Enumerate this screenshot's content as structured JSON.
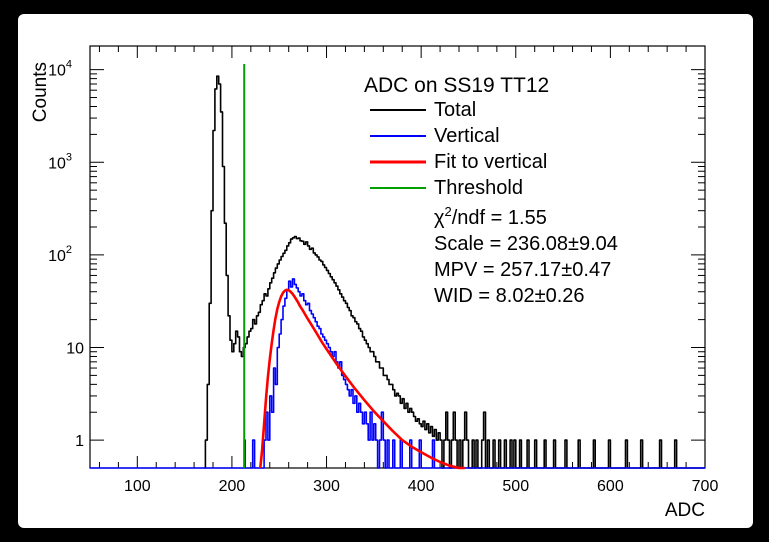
{
  "chart_data": {
    "type": "line",
    "xlabel": "ADC",
    "ylabel": "Counts",
    "xlim": [
      50,
      700
    ],
    "ylim": [
      0.5,
      18000
    ],
    "yscale": "log",
    "x_ticks": [
      100,
      200,
      300,
      400,
      500,
      600,
      700
    ],
    "y_ticks": [
      {
        "value": 1,
        "label": "1"
      },
      {
        "value": 10,
        "label": "10"
      },
      {
        "value": 100,
        "label": "10",
        "sup": "2"
      },
      {
        "value": 1000,
        "label": "10",
        "sup": "3"
      },
      {
        "value": 10000,
        "label": "10",
        "sup": "4"
      }
    ],
    "legend": {
      "title": "ADC on SS19 TT12",
      "placement": "top-right",
      "entries": [
        {
          "label": "Total",
          "color": "#000000"
        },
        {
          "label": "Vertical",
          "color": "#0000ff"
        },
        {
          "label": "Fit to vertical",
          "color": "#ff0000"
        },
        {
          "label": "Threshold",
          "color": "#00a000"
        }
      ],
      "stats": {
        "chi2_symbol": "χ",
        "chi2_sup": "2",
        "chi2_rest": "/ndf = 1.55",
        "scale": "Scale = 236.08±9.04",
        "mpv": "MPV = 257.17±0.47",
        "wid": "WID = 8.02±0.26"
      }
    },
    "threshold_x": 213,
    "series": [
      {
        "name": "Total",
        "color": "#000000",
        "kind": "step",
        "points": [
          [
            171,
            0.5
          ],
          [
            172,
            1
          ],
          [
            174,
            4
          ],
          [
            176,
            30
          ],
          [
            178,
            300
          ],
          [
            180,
            2200
          ],
          [
            182,
            6200
          ],
          [
            184,
            8500
          ],
          [
            186,
            7000
          ],
          [
            188,
            3500
          ],
          [
            190,
            900
          ],
          [
            192,
            220
          ],
          [
            194,
            60
          ],
          [
            196,
            22
          ],
          [
            198,
            12
          ],
          [
            200,
            9
          ],
          [
            202,
            11
          ],
          [
            204,
            15
          ],
          [
            206,
            13
          ],
          [
            208,
            9
          ],
          [
            210,
            8
          ],
          [
            212,
            10
          ],
          [
            214,
            11
          ],
          [
            216,
            13
          ],
          [
            218,
            15
          ],
          [
            220,
            16
          ],
          [
            222,
            20
          ],
          [
            224,
            18
          ],
          [
            226,
            22
          ],
          [
            228,
            24
          ],
          [
            230,
            29
          ],
          [
            232,
            32
          ],
          [
            234,
            38
          ],
          [
            236,
            36
          ],
          [
            238,
            43
          ],
          [
            240,
            50
          ],
          [
            242,
            56
          ],
          [
            244,
            64
          ],
          [
            246,
            72
          ],
          [
            248,
            80
          ],
          [
            250,
            88
          ],
          [
            252,
            96
          ],
          [
            254,
            104
          ],
          [
            256,
            112
          ],
          [
            258,
            125
          ],
          [
            260,
            135
          ],
          [
            262,
            148
          ],
          [
            264,
            153
          ],
          [
            266,
            158
          ],
          [
            268,
            150
          ],
          [
            270,
            152
          ],
          [
            272,
            142
          ],
          [
            274,
            140
          ],
          [
            276,
            130
          ],
          [
            278,
            138
          ],
          [
            280,
            125
          ],
          [
            282,
            115
          ],
          [
            284,
            118
          ],
          [
            286,
            105
          ],
          [
            288,
            100
          ],
          [
            290,
            95
          ],
          [
            292,
            88
          ],
          [
            294,
            85
          ],
          [
            296,
            78
          ],
          [
            298,
            73
          ],
          [
            300,
            68
          ],
          [
            302,
            63
          ],
          [
            304,
            58
          ],
          [
            306,
            54
          ],
          [
            308,
            50
          ],
          [
            310,
            46
          ],
          [
            312,
            42
          ],
          [
            314,
            38
          ],
          [
            316,
            35
          ],
          [
            318,
            32
          ],
          [
            320,
            30
          ],
          [
            322,
            27
          ],
          [
            324,
            25
          ],
          [
            326,
            22
          ],
          [
            328,
            21
          ],
          [
            330,
            19
          ],
          [
            332,
            18
          ],
          [
            334,
            16
          ],
          [
            336,
            15
          ],
          [
            338,
            13
          ],
          [
            340,
            12
          ],
          [
            342,
            11
          ],
          [
            344,
            10
          ],
          [
            346,
            9
          ],
          [
            348,
            9
          ],
          [
            350,
            8
          ],
          [
            352,
            7
          ],
          [
            354,
            7
          ],
          [
            356,
            6
          ],
          [
            358,
            6
          ],
          [
            360,
            5
          ],
          [
            362,
            5
          ],
          [
            364,
            4.5
          ],
          [
            366,
            4
          ],
          [
            368,
            4
          ],
          [
            370,
            3.5
          ],
          [
            372,
            3
          ],
          [
            374,
            3.2
          ],
          [
            376,
            3
          ],
          [
            378,
            2.5
          ],
          [
            380,
            2.8
          ],
          [
            382,
            2.2
          ],
          [
            384,
            2.5
          ],
          [
            386,
            2
          ],
          [
            388,
            2.2
          ],
          [
            390,
            2
          ],
          [
            392,
            1.8
          ],
          [
            394,
            1.6
          ],
          [
            396,
            1.7
          ],
          [
            398,
            1.5
          ],
          [
            400,
            1.4
          ],
          [
            402,
            1.6
          ],
          [
            404,
            1.3
          ],
          [
            406,
            1.5
          ],
          [
            408,
            1.2
          ],
          [
            410,
            1.4
          ],
          [
            412,
            1.1
          ],
          [
            414,
            1.3
          ],
          [
            416,
            1
          ],
          [
            418,
            1.2
          ],
          [
            420,
            1
          ],
          [
            422,
            0.5
          ],
          [
            424,
            1
          ],
          [
            426,
            2
          ],
          [
            428,
            1
          ],
          [
            430,
            0.5
          ],
          [
            432,
            1
          ],
          [
            434,
            2
          ],
          [
            436,
            1
          ],
          [
            438,
            0.5
          ],
          [
            440,
            1
          ],
          [
            442,
            0.5
          ],
          [
            444,
            1
          ],
          [
            446,
            2
          ],
          [
            448,
            1
          ],
          [
            450,
            0.5
          ],
          [
            454,
            1
          ],
          [
            456,
            0.5
          ],
          [
            458,
            1
          ],
          [
            460,
            0.5
          ],
          [
            464,
            1
          ],
          [
            466,
            2
          ],
          [
            468,
            0.5
          ],
          [
            470,
            1
          ],
          [
            472,
            0.5
          ],
          [
            476,
            1
          ],
          [
            478,
            0.5
          ],
          [
            482,
            1
          ],
          [
            484,
            0.5
          ],
          [
            488,
            1
          ],
          [
            490,
            0.5
          ],
          [
            494,
            1
          ],
          [
            496,
            0.5
          ],
          [
            498,
            1
          ],
          [
            500,
            0.5
          ],
          [
            504,
            1
          ],
          [
            506,
            0.5
          ],
          [
            512,
            1
          ],
          [
            514,
            0.5
          ],
          [
            520,
            1
          ],
          [
            522,
            0.5
          ],
          [
            530,
            1
          ],
          [
            532,
            0.5
          ],
          [
            540,
            1
          ],
          [
            542,
            0.5
          ],
          [
            552,
            1
          ],
          [
            554,
            0.5
          ],
          [
            566,
            1
          ],
          [
            568,
            0.5
          ],
          [
            582,
            1
          ],
          [
            584,
            0.5
          ],
          [
            598,
            1
          ],
          [
            600,
            0.5
          ],
          [
            616,
            1
          ],
          [
            618,
            0.5
          ],
          [
            632,
            1
          ],
          [
            634,
            0.5
          ],
          [
            652,
            1
          ],
          [
            654,
            0.5
          ],
          [
            668,
            1
          ],
          [
            670,
            0.5
          ],
          [
            700,
            0.5
          ]
        ]
      },
      {
        "name": "Vertical",
        "color": "#0000ff",
        "kind": "step",
        "points": [
          [
            50,
            0.5
          ],
          [
            212,
            0.5
          ],
          [
            213,
            1
          ],
          [
            214,
            0.5
          ],
          [
            222,
            1
          ],
          [
            224,
            0.5
          ],
          [
            234,
            1
          ],
          [
            236,
            2
          ],
          [
            238,
            1
          ],
          [
            240,
            3
          ],
          [
            242,
            2
          ],
          [
            244,
            6
          ],
          [
            246,
            4
          ],
          [
            248,
            10
          ],
          [
            250,
            14
          ],
          [
            252,
            20
          ],
          [
            254,
            28
          ],
          [
            256,
            34
          ],
          [
            258,
            42
          ],
          [
            260,
            52
          ],
          [
            262,
            45
          ],
          [
            264,
            55
          ],
          [
            266,
            48
          ],
          [
            268,
            44
          ],
          [
            270,
            40
          ],
          [
            272,
            36
          ],
          [
            274,
            38
          ],
          [
            276,
            32
          ],
          [
            278,
            29
          ],
          [
            280,
            30
          ],
          [
            282,
            25
          ],
          [
            284,
            23
          ],
          [
            286,
            21
          ],
          [
            288,
            19
          ],
          [
            290,
            17
          ],
          [
            292,
            16
          ],
          [
            294,
            14
          ],
          [
            296,
            13
          ],
          [
            298,
            12
          ],
          [
            300,
            11
          ],
          [
            302,
            10
          ],
          [
            304,
            9
          ],
          [
            306,
            8
          ],
          [
            308,
            9
          ],
          [
            310,
            7
          ],
          [
            312,
            6
          ],
          [
            314,
            7
          ],
          [
            316,
            5
          ],
          [
            318,
            4.5
          ],
          [
            320,
            4
          ],
          [
            322,
            3.5
          ],
          [
            324,
            3
          ],
          [
            326,
            3.5
          ],
          [
            328,
            2.5
          ],
          [
            330,
            3
          ],
          [
            332,
            2
          ],
          [
            334,
            2.5
          ],
          [
            336,
            2
          ],
          [
            338,
            1.5
          ],
          [
            340,
            2
          ],
          [
            342,
            1.5
          ],
          [
            344,
            1
          ],
          [
            346,
            2
          ],
          [
            348,
            1
          ],
          [
            350,
            1.5
          ],
          [
            352,
            1
          ],
          [
            354,
            0.5
          ],
          [
            356,
            1
          ],
          [
            358,
            2
          ],
          [
            360,
            1
          ],
          [
            362,
            0.5
          ],
          [
            364,
            1
          ],
          [
            366,
            0.5
          ],
          [
            370,
            1
          ],
          [
            372,
            0.5
          ],
          [
            378,
            1
          ],
          [
            380,
            0.5
          ],
          [
            388,
            1
          ],
          [
            390,
            0.5
          ],
          [
            398,
            1
          ],
          [
            400,
            0.5
          ],
          [
            412,
            1
          ],
          [
            414,
            0.5
          ],
          [
            700,
            0.5
          ]
        ]
      },
      {
        "name": "Fit to vertical",
        "color": "#ff0000",
        "kind": "line",
        "points": [
          [
            230,
            0.5
          ],
          [
            232,
            0.8
          ],
          [
            234,
            1.5
          ],
          [
            236,
            2.8
          ],
          [
            238,
            4.8
          ],
          [
            240,
            7.5
          ],
          [
            242,
            11
          ],
          [
            244,
            15.5
          ],
          [
            246,
            20.5
          ],
          [
            248,
            26
          ],
          [
            250,
            31
          ],
          [
            252,
            35.5
          ],
          [
            254,
            39
          ],
          [
            256,
            41
          ],
          [
            258,
            42
          ],
          [
            260,
            41.5
          ],
          [
            262,
            40
          ],
          [
            264,
            38
          ],
          [
            266,
            35.5
          ],
          [
            268,
            33
          ],
          [
            270,
            30.5
          ],
          [
            272,
            28
          ],
          [
            275,
            25
          ],
          [
            280,
            20.5
          ],
          [
            285,
            17
          ],
          [
            290,
            14
          ],
          [
            295,
            11.5
          ],
          [
            300,
            9.6
          ],
          [
            310,
            6.8
          ],
          [
            320,
            4.9
          ],
          [
            330,
            3.6
          ],
          [
            340,
            2.7
          ],
          [
            350,
            2.05
          ],
          [
            360,
            1.6
          ],
          [
            370,
            1.25
          ],
          [
            380,
            1
          ],
          [
            390,
            0.85
          ],
          [
            400,
            0.74
          ],
          [
            410,
            0.65
          ],
          [
            420,
            0.58
          ],
          [
            430,
            0.53
          ],
          [
            440,
            0.49
          ],
          [
            446,
            0.47
          ]
        ]
      }
    ]
  }
}
